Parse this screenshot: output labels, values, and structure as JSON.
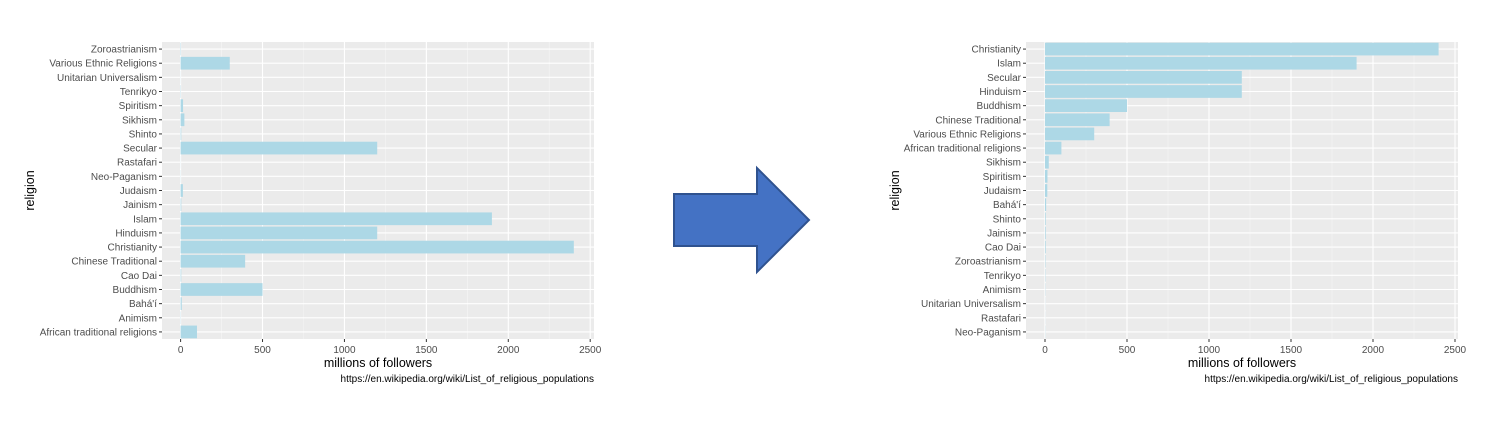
{
  "colors": {
    "panel": "#ebebeb",
    "grid_major": "#ffffff",
    "grid_minor": "#f5f5f5",
    "bar": "#add8e6",
    "arrow_fill": "#4472c4",
    "arrow_stroke": "#2f528f",
    "tick_text": "#4d4d4d"
  },
  "arrow": {
    "icon": "right-arrow-icon",
    "direction": "right"
  },
  "chart_data": [
    {
      "type": "bar",
      "orientation": "horizontal",
      "ordering": "alphabetical",
      "xlabel": "millions of followers",
      "ylabel": "religion",
      "caption": "https://en.wikipedia.org/wiki/List_of_religious_populations",
      "xlim": [
        0,
        2500
      ],
      "xticks": [
        0,
        500,
        1000,
        1500,
        2000,
        2500
      ],
      "xtick_labels": [
        "0",
        "500",
        "1000",
        "1500",
        "2000",
        "2500"
      ],
      "grid": true,
      "categories": [
        "Zoroastrianism",
        "Various Ethnic Religions",
        "Unitarian Universalism",
        "Tenrikyo",
        "Spiritism",
        "Sikhism",
        "Shinto",
        "Secular",
        "Rastafari",
        "Neo-Paganism",
        "Judaism",
        "Jainism",
        "Islam",
        "Hinduism",
        "Christianity",
        "Chinese Traditional",
        "Cao Dai",
        "Buddhism",
        "Bahá'í",
        "Animism",
        "African traditional religions"
      ],
      "values": [
        2.6,
        300,
        0.8,
        2,
        15,
        23,
        4,
        1200,
        0.6,
        1,
        14,
        4.2,
        1900,
        1200,
        2400,
        394,
        4,
        500,
        7,
        1.5,
        100
      ]
    },
    {
      "type": "bar",
      "orientation": "horizontal",
      "ordering": "sorted by value",
      "xlabel": "millions of followers",
      "ylabel": "religion",
      "caption": "https://en.wikipedia.org/wiki/List_of_religious_populations",
      "xlim": [
        0,
        2500
      ],
      "xticks": [
        0,
        500,
        1000,
        1500,
        2000,
        2500
      ],
      "xtick_labels": [
        "0",
        "500",
        "1000",
        "1500",
        "2000",
        "2500"
      ],
      "grid": true,
      "categories": [
        "Christianity",
        "Islam",
        "Secular",
        "Hinduism",
        "Buddhism",
        "Chinese Traditional",
        "Various Ethnic Religions",
        "African traditional religions",
        "Sikhism",
        "Spiritism",
        "Judaism",
        "Bahá'í",
        "Shinto",
        "Jainism",
        "Cao Dai",
        "Zoroastrianism",
        "Tenrikyo",
        "Animism",
        "Unitarian Universalism",
        "Rastafari",
        "Neo-Paganism"
      ],
      "values": [
        2400,
        1900,
        1200,
        1200,
        500,
        394,
        300,
        100,
        23,
        15,
        14,
        7,
        4,
        4.2,
        4,
        2.6,
        2,
        1.5,
        0.8,
        0.6,
        1
      ]
    }
  ]
}
